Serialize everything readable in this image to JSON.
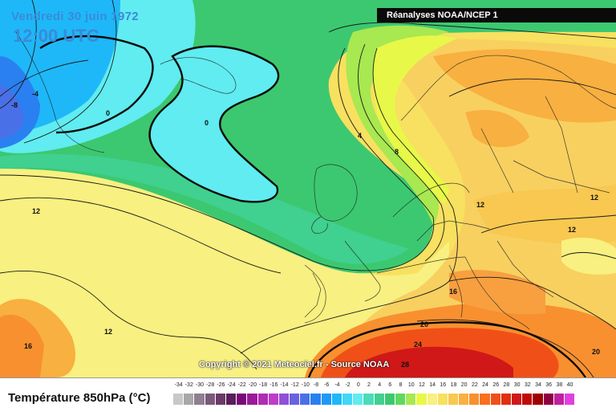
{
  "header": {
    "date": "Vendredi 30 juin 1972",
    "time": "12:00 UTC",
    "source": "Réanalyses NOAA/NCEP 1"
  },
  "footer": {
    "copyright": "Copyright © 2021 Meteociel.fr - Source NOAA"
  },
  "legend": {
    "title": "Température 850hPa (°C)",
    "ticks": [
      "-34",
      "-32",
      "-30",
      "-28",
      "-26",
      "-24",
      "-22",
      "-20",
      "-18",
      "-16",
      "-14",
      "-12",
      "-10",
      "-8",
      "-6",
      "-4",
      "-2",
      "0",
      "2",
      "4",
      "6",
      "8",
      "10",
      "12",
      "14",
      "16",
      "18",
      "20",
      "22",
      "24",
      "26",
      "28",
      "30",
      "32",
      "34",
      "36",
      "38",
      "40"
    ],
    "colors": [
      "#c8c8c8",
      "#a8a8a8",
      "#8f7f8f",
      "#7a5a7a",
      "#6a3a6a",
      "#5a1e5a",
      "#780a78",
      "#9a1a9a",
      "#b02cb0",
      "#c03cc8",
      "#9050d8",
      "#6a60e0",
      "#4a70e8",
      "#2a80f0",
      "#1e98f8",
      "#1eb8f8",
      "#40d8f8",
      "#60ecf0",
      "#4cdcb8",
      "#40d090",
      "#3cc870",
      "#60d860",
      "#a8e850",
      "#e8f848",
      "#f8f080",
      "#f8e060",
      "#f8c850",
      "#f8b040",
      "#f89030",
      "#f87020",
      "#f05018",
      "#e03010",
      "#d01818",
      "#c00a0a",
      "#a00000",
      "#900040",
      "#c020a0",
      "#e040e0"
    ]
  },
  "map": {
    "isotherm_labels": [
      {
        "name": "label-minus8",
        "text": "-8"
      },
      {
        "name": "label-minus4",
        "text": "-4"
      },
      {
        "name": "label-0-greenland",
        "text": "0"
      },
      {
        "name": "label-0-atlantic",
        "text": "0"
      },
      {
        "name": "label-4",
        "text": "4"
      },
      {
        "name": "label-8",
        "text": "8"
      },
      {
        "name": "label-12-west",
        "text": "12"
      },
      {
        "name": "label-12-atlantic",
        "text": "12"
      },
      {
        "name": "label-12-central",
        "text": "12"
      },
      {
        "name": "label-12-east",
        "text": "12"
      },
      {
        "name": "label-12-east2",
        "text": "12"
      },
      {
        "name": "label-16-southwest",
        "text": "16"
      },
      {
        "name": "label-16-italy",
        "text": "16"
      },
      {
        "name": "label-20-med",
        "text": "20"
      },
      {
        "name": "label-20-east",
        "text": "20"
      },
      {
        "name": "label-24",
        "text": "24"
      },
      {
        "name": "label-28",
        "text": "28"
      }
    ]
  }
}
